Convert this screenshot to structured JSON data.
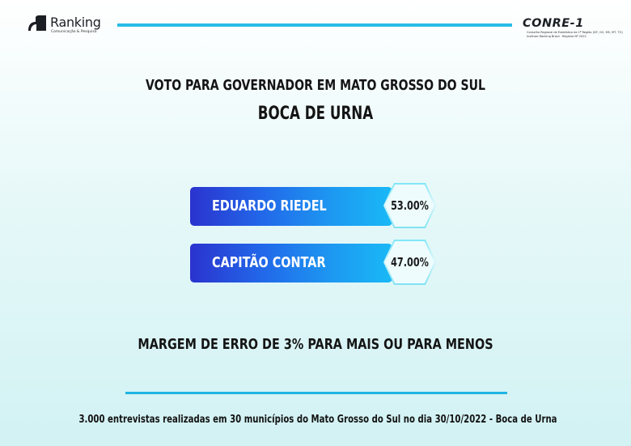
{
  "header": {
    "logo_left_name": "Ranking",
    "logo_left_tagline": "Comunicação & Pesquisa",
    "logo_right_name": "CONRE-1",
    "logo_right_line1": "Conselho Regional de Estatística da 1ª Região (DF, GO, MS, MT, TO)",
    "logo_right_line2": "Instituto Ranking Brasil · Registro Nº 2022"
  },
  "title_line1": "VOTO PARA GOVERNADOR EM MATO GROSSO DO SUL",
  "title_line2": "BOCA DE URNA",
  "candidates": [
    {
      "name": "EDUARDO RIEDEL",
      "percent_label": "53.00%",
      "value": 53.0
    },
    {
      "name": "CAPITÃO CONTAR",
      "percent_label": "47.00%",
      "value": 47.0
    }
  ],
  "margin_text": "MARGEM DE ERRO DE 3% PARA MAIS OU PARA MENOS",
  "footer_text": "3.000 entrevistas realizadas em 30 municípios do Mato Grosso do Sul no dia 30/10/2022 - Boca de Urna",
  "colors": {
    "accent_line": "#27bde6",
    "bar_start": "#2a33ce",
    "bar_end": "#19b9f6",
    "hex_border": "#7fe6f7",
    "text": "#141414"
  },
  "icons": {
    "logo_left": "ranking-logo-icon",
    "logo_right": "conre-seal-icon"
  }
}
